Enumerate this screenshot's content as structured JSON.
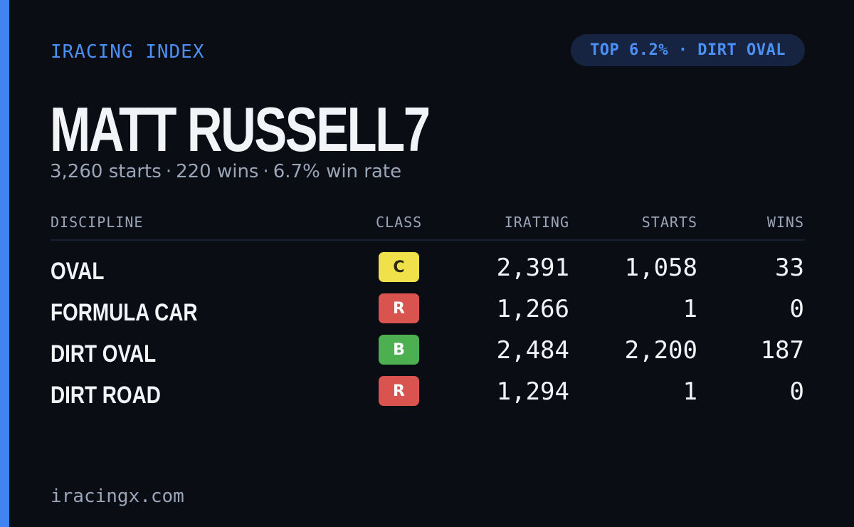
{
  "brand": "IRACING INDEX",
  "badge": "TOP 6.2% · DIRT OVAL",
  "driver_name": "MATT RUSSELL7",
  "summary": {
    "starts": "3,260 starts",
    "wins": "220 wins",
    "win_rate": "6.7% win rate",
    "separator": "·"
  },
  "table": {
    "headers": {
      "discipline": "DISCIPLINE",
      "class": "CLASS",
      "irating": "IRATING",
      "starts": "STARTS",
      "wins": "WINS"
    },
    "rows": [
      {
        "discipline": "OVAL",
        "class": "C",
        "class_bg": "#f0e04a",
        "class_fg": "#2a2a10",
        "irating": "2,391",
        "starts": "1,058",
        "wins": "33"
      },
      {
        "discipline": "FORMULA CAR",
        "class": "R",
        "class_bg": "#d9534f",
        "class_fg": "#ffffff",
        "irating": "1,266",
        "starts": "1",
        "wins": "0"
      },
      {
        "discipline": "DIRT OVAL",
        "class": "B",
        "class_bg": "#4caf50",
        "class_fg": "#ffffff",
        "irating": "2,484",
        "starts": "2,200",
        "wins": "187"
      },
      {
        "discipline": "DIRT ROAD",
        "class": "R",
        "class_bg": "#d9534f",
        "class_fg": "#ffffff",
        "irating": "1,294",
        "starts": "1",
        "wins": "0"
      }
    ]
  },
  "footer": "iracingx.com",
  "colors": {
    "background": "#0a0d14",
    "accent": "#3f84f0",
    "badge_bg": "#162441"
  }
}
